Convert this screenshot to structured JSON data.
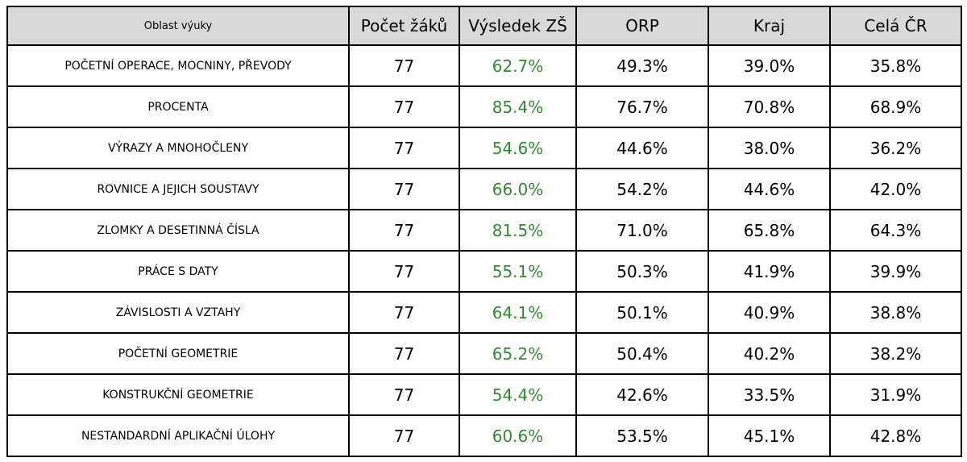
{
  "table": {
    "headers": [
      "Oblast výuky",
      "Počet žáků",
      "Výsledek ZŠ",
      "ORP",
      "Kraj",
      "Celá ČR"
    ],
    "rows": [
      [
        "POČETNÍ OPERACE, MOCNINY, PŘEVODY",
        "77",
        "62.7%",
        "49.3%",
        "39.0%",
        "35.8%"
      ],
      [
        "PROCENTA",
        "77",
        "85.4%",
        "76.7%",
        "70.8%",
        "68.9%"
      ],
      [
        "VÝRAZY A MNOHOČLENY",
        "77",
        "54.6%",
        "44.6%",
        "38.0%",
        "36.2%"
      ],
      [
        "ROVNICE A JEJICH SOUSTAVY",
        "77",
        "66.0%",
        "54.2%",
        "44.6%",
        "42.0%"
      ],
      [
        "ZLOMKY A DESETINNÁ ČÍSLA",
        "77",
        "81.5%",
        "71.0%",
        "65.8%",
        "64.3%"
      ],
      [
        "PRÁCE S DATY",
        "77",
        "55.1%",
        "50.3%",
        "41.9%",
        "39.9%"
      ],
      [
        "ZÁVISLOSTI A VZTAHY",
        "77",
        "64.1%",
        "50.1%",
        "40.9%",
        "38.8%"
      ],
      [
        "POČETNÍ GEOMETRIE",
        "77",
        "65.2%",
        "50.4%",
        "40.2%",
        "38.2%"
      ],
      [
        "KONSTRUKČNÍ GEOMETRIE",
        "77",
        "54.4%",
        "42.6%",
        "33.5%",
        "31.9%"
      ],
      [
        "NESTANDARDNÍ APLIKAČNÍ ÚLOHY",
        "77",
        "60.6%",
        "53.5%",
        "45.1%",
        "42.8%"
      ]
    ]
  },
  "colors": {
    "header_background": "#d9d9d9",
    "school_result_text": "#2e8b2e",
    "border": "#000000"
  }
}
